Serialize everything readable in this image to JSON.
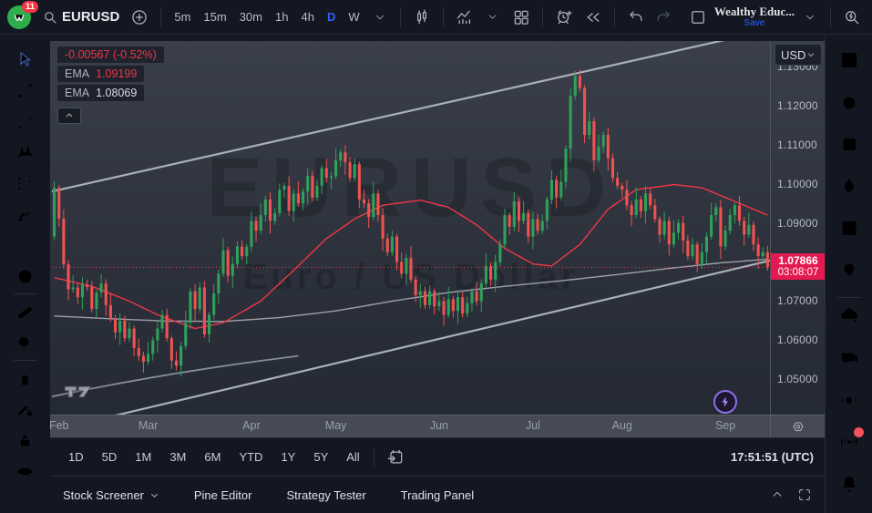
{
  "header": {
    "badge": "11",
    "symbol": "EURUSD",
    "timeframes": [
      "5m",
      "15m",
      "30m",
      "1h",
      "4h",
      "D",
      "W"
    ],
    "active_timeframe": "D",
    "account_name": "Wealthy Educ...",
    "save_label": "Save"
  },
  "left_toolbar": {
    "tools": [
      "cursor",
      "trend-line",
      "fib-retracement",
      "xabcd-pattern",
      "forecast-position",
      "brush",
      "text",
      "emoji",
      "ruler",
      "zoom-in",
      "magnet",
      "drawing-lock",
      "lock-all",
      "hide-drawings"
    ]
  },
  "right_sidebar": {
    "items": [
      "watchlist",
      "alerts",
      "notes",
      "hotlists",
      "calendar",
      "ideas",
      "minds",
      "chat",
      "live-ideas",
      "streams",
      "notifications"
    ]
  },
  "legend": {
    "change": "-0.00567 (-0.52%)",
    "ema_fast_label": "EMA",
    "ema_fast_value": "1.09199",
    "ema_slow_label": "EMA",
    "ema_slow_value": "1.08069"
  },
  "price_axis": {
    "currency": "USD",
    "last_price_label": "1.07866",
    "countdown": "03:08:07"
  },
  "range_bar": {
    "ranges": [
      "1D",
      "5D",
      "1M",
      "3M",
      "6M",
      "YTD",
      "1Y",
      "5Y",
      "All"
    ],
    "clock": "17:51:51 (UTC)"
  },
  "bottom_bar": {
    "items": [
      "Stock Screener",
      "Pine Editor",
      "Strategy Tester",
      "Trading Panel"
    ]
  },
  "watermark": {
    "line1": "EURUSD",
    "line2": "Euro / US Dollar"
  },
  "chart_data": {
    "type": "candlestick",
    "symbol": "EURUSD",
    "timeframe": "1D",
    "price_range": [
      1.041,
      1.1365
    ],
    "open_first": 1.0865,
    "closes": [
      1.099,
      1.0911,
      1.0794,
      1.073,
      1.0735,
      1.071,
      1.0742,
      1.0736,
      1.068,
      1.0722,
      1.0745,
      1.069,
      1.0655,
      1.062,
      1.065,
      1.0605,
      1.063,
      1.058,
      1.056,
      1.0545,
      1.0565,
      1.06,
      1.063,
      1.0665,
      1.0605,
      1.0548,
      1.0535,
      1.0585,
      1.0645,
      1.0725,
      1.068,
      1.0735,
      1.0615,
      1.0665,
      1.072,
      1.077,
      1.083,
      1.0765,
      1.0795,
      1.084,
      1.0815,
      1.0839,
      1.0905,
      1.088,
      1.092,
      1.096,
      1.0905,
      1.0925,
      1.0985,
      1.0995,
      1.093,
      1.0975,
      1.095,
      1.098,
      1.102,
      1.0965,
      1.0995,
      1.104,
      1.1015,
      1.1019,
      1.106,
      1.108,
      1.1055,
      1.1015,
      1.105,
      1.096,
      1.095,
      1.0915,
      1.0975,
      1.092,
      1.086,
      1.0825,
      1.0865,
      1.08,
      1.077,
      1.081,
      1.0755,
      1.0715,
      1.0725,
      1.069,
      1.0725,
      1.0687,
      1.07,
      1.0665,
      1.0705,
      1.0675,
      1.071,
      1.0668,
      1.0695,
      1.0725,
      1.07,
      1.0745,
      1.079,
      1.0755,
      1.08,
      1.0845,
      1.092,
      1.089,
      1.0955,
      1.0905,
      1.0925,
      1.0865,
      1.091,
      1.088,
      1.0905,
      1.096,
      1.101,
      1.0965,
      1.1005,
      1.109,
      1.1225,
      1.1276,
      1.1245,
      1.1125,
      1.116,
      1.106,
      1.1095,
      1.1125,
      1.1065,
      1.1015,
      1.0995,
      1.0985,
      1.0945,
      1.092,
      1.096,
      1.093,
      1.0975,
      1.0945,
      1.091,
      1.087,
      1.0905,
      1.0845,
      1.0875,
      1.09,
      1.0855,
      1.0815,
      1.0845,
      1.0795,
      1.0825,
      1.0865,
      1.092,
      1.094,
      1.084,
      1.088,
      1.092,
      1.0945,
      1.0905,
      1.087,
      1.0895,
      1.0845,
      1.0815,
      1.0825,
      1.07866
    ],
    "wick_high_cycle": [
      0.0016,
      0.0007,
      0.0024,
      0.0011,
      0.0031,
      0.0009,
      0.0019,
      0.0013
    ],
    "wick_low_cycle": [
      0.0009,
      0.0021,
      0.0012,
      0.0028,
      0.0008,
      0.0017,
      0.0032,
      0.001
    ],
    "last_price": 1.07866,
    "y_ticks": [
      {
        "label": "1.13000",
        "value": 1.13
      },
      {
        "label": "1.12000",
        "value": 1.12
      },
      {
        "label": "1.11000",
        "value": 1.11
      },
      {
        "label": "1.10000",
        "value": 1.1
      },
      {
        "label": "1.09000",
        "value": 1.09
      },
      {
        "label": "1.08000",
        "value": 1.08
      },
      {
        "label": "1.07000",
        "value": 1.07
      },
      {
        "label": "1.06000",
        "value": 1.06
      },
      {
        "label": "1.05000",
        "value": 1.05
      }
    ],
    "months": [
      {
        "label": "Feb",
        "index": 1
      },
      {
        "label": "Mar",
        "index": 20
      },
      {
        "label": "Apr",
        "index": 42
      },
      {
        "label": "May",
        "index": 60
      },
      {
        "label": "Jun",
        "index": 82
      },
      {
        "label": "Jul",
        "index": 102
      },
      {
        "label": "Aug",
        "index": 121
      },
      {
        "label": "Sep",
        "index": 143
      }
    ],
    "ema_fast": {
      "name": "EMA fast",
      "value": 1.09199,
      "color": "#f23645",
      "anchors": [
        [
          0,
          1.076
        ],
        [
          8,
          1.0738
        ],
        [
          16,
          1.07
        ],
        [
          22,
          1.0665
        ],
        [
          30,
          1.063
        ],
        [
          36,
          1.0645
        ],
        [
          44,
          1.07
        ],
        [
          52,
          1.079
        ],
        [
          58,
          1.086
        ],
        [
          64,
          1.091
        ],
        [
          70,
          1.0945
        ],
        [
          78,
          1.0958
        ],
        [
          84,
          1.094
        ],
        [
          90,
          1.0895
        ],
        [
          96,
          1.0835
        ],
        [
          102,
          1.0795
        ],
        [
          106,
          1.079
        ],
        [
          112,
          1.0845
        ],
        [
          118,
          1.0935
        ],
        [
          124,
          1.0985
        ],
        [
          132,
          1.0998
        ],
        [
          138,
          1.099
        ],
        [
          144,
          1.096
        ],
        [
          148,
          1.094
        ],
        [
          152,
          1.092
        ]
      ]
    },
    "ema_slow": {
      "name": "EMA slow",
      "value": 1.08069,
      "color": "#9ba0a9",
      "anchors": [
        [
          0,
          1.0662
        ],
        [
          12,
          1.0655
        ],
        [
          24,
          1.0649
        ],
        [
          36,
          1.0648
        ],
        [
          48,
          1.0658
        ],
        [
          60,
          1.0675
        ],
        [
          72,
          1.07
        ],
        [
          84,
          1.0722
        ],
        [
          96,
          1.0738
        ],
        [
          108,
          1.0752
        ],
        [
          120,
          1.0768
        ],
        [
          132,
          1.0785
        ],
        [
          142,
          1.0798
        ],
        [
          152,
          1.0807
        ]
      ]
    },
    "channel_upper": [
      [
        0,
        1.0979
      ],
      [
        152,
        1.1395
      ]
    ],
    "channel_lower": [
      [
        0,
        1.0368
      ],
      [
        152,
        1.0805
      ]
    ],
    "curve_sketch": [
      [
        0,
        1.0455
      ],
      [
        25,
        1.052
      ],
      [
        52,
        1.056
      ]
    ],
    "colors": {
      "up": "#30a05a",
      "down": "#ef5350",
      "last_line": "#f23645",
      "channel": "#aab0ba",
      "label_bg": "#e4194f"
    }
  }
}
